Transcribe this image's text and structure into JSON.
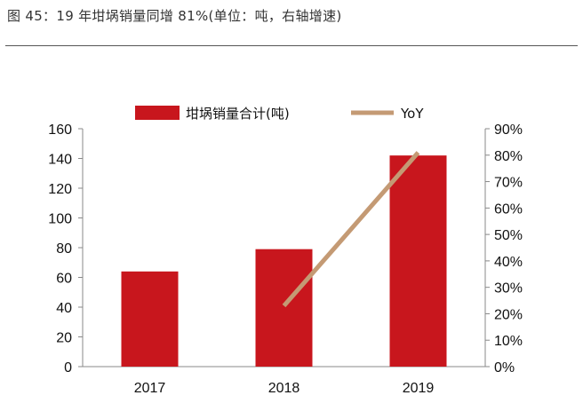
{
  "caption": "图 45：19 年坩埚销量同增 81%(单位：吨，右轴增速)",
  "chart_data": {
    "type": "bar",
    "categories": [
      "2017",
      "2018",
      "2019"
    ],
    "series": [
      {
        "name": "坩埚销量合计(吨)",
        "type": "bar",
        "axis": "left",
        "color": "#c8161d",
        "values": [
          64,
          79,
          142
        ]
      },
      {
        "name": "YoY",
        "type": "line",
        "axis": "right",
        "color": "#c49a74",
        "values": [
          null,
          23,
          81
        ]
      }
    ],
    "ylim_left": [
      0,
      160
    ],
    "yticks_left": [
      "0",
      "20",
      "40",
      "60",
      "80",
      "100",
      "120",
      "140",
      "160"
    ],
    "ylim_right": [
      0,
      90
    ],
    "yticks_right": [
      "0%",
      "10%",
      "20%",
      "30%",
      "40%",
      "50%",
      "60%",
      "70%",
      "80%",
      "90%"
    ],
    "legend_position": "top-center",
    "grid": false
  }
}
